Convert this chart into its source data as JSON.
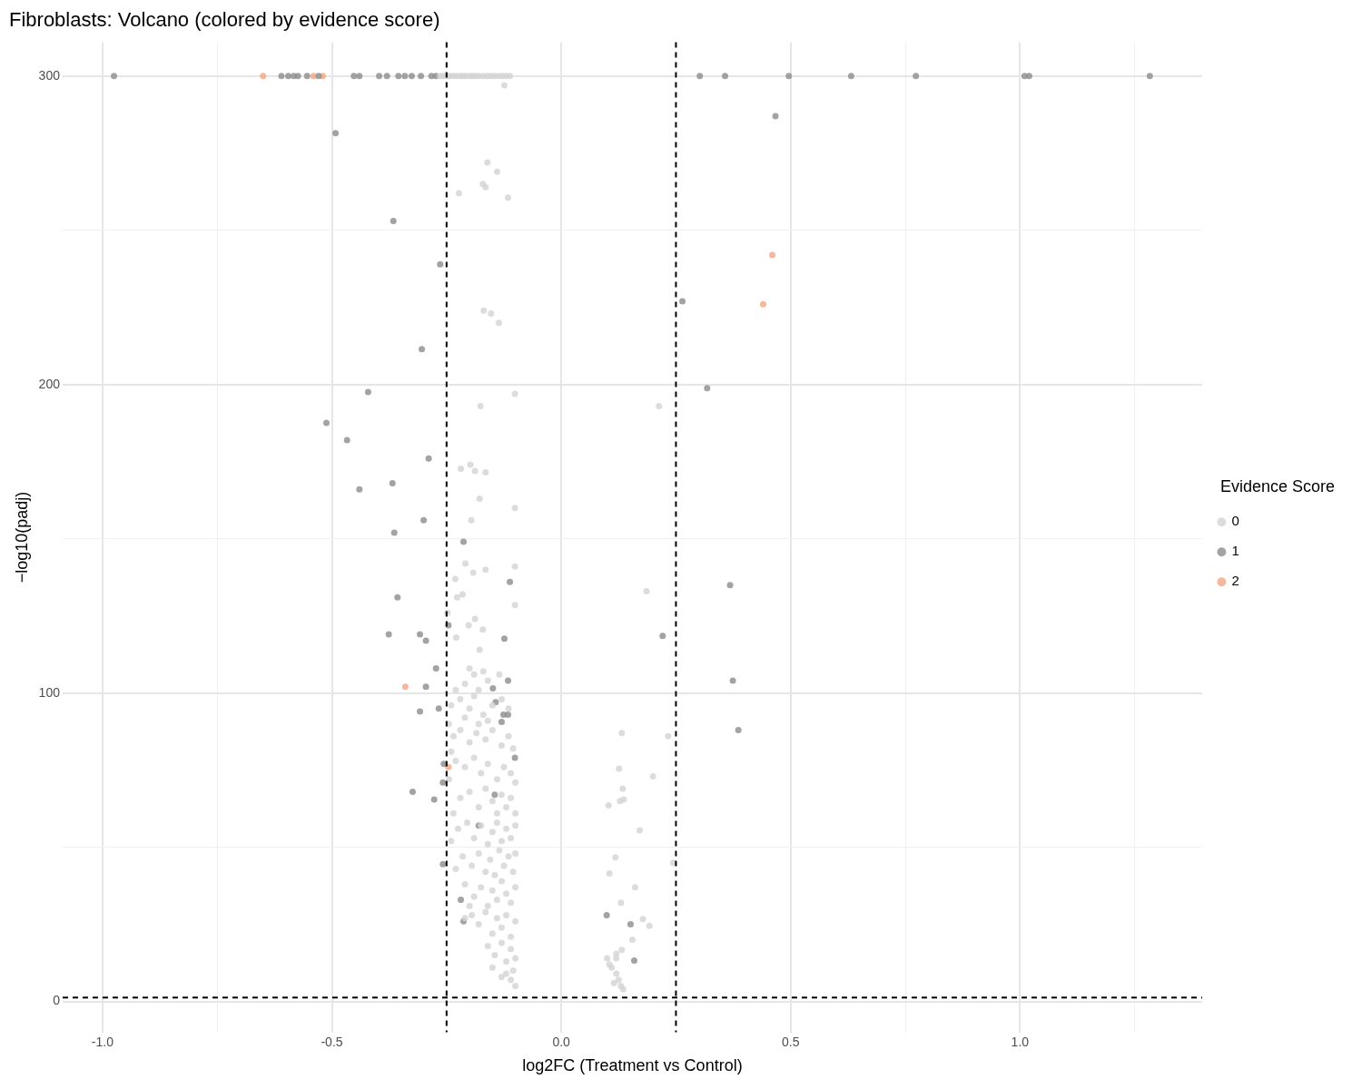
{
  "chart_data": {
    "type": "scatter",
    "title": "Fibroblasts: Volcano (colored by evidence score)",
    "xlabel": "log2FC (Treatment vs Control)",
    "ylabel": "−log10(padj)",
    "legend_title": "Evidence Score",
    "legend": "right",
    "grid": true,
    "marker": "circle",
    "xlim": [
      -1.087,
      1.397
    ],
    "ylim": [
      -10,
      311
    ],
    "xticks": [
      {
        "value": -1,
        "label": "-1.0"
      },
      {
        "value": -0.75,
        "label": null
      },
      {
        "value": -0.5,
        "label": "-0.5"
      },
      {
        "value": 0,
        "label": "0.0"
      },
      {
        "value": 0.5,
        "label": "0.5"
      },
      {
        "value": 0.75,
        "label": null
      },
      {
        "value": 1,
        "label": "1.0"
      },
      {
        "value": 1.25,
        "label": null
      }
    ],
    "yticks": [
      0,
      {
        "value": 50,
        "label": null
      },
      100,
      {
        "value": 150,
        "label": null
      },
      200,
      {
        "value": 250,
        "label": null
      },
      300
    ],
    "ref_lines": [
      {
        "axis": "x",
        "value": -0.25,
        "color": "#000000",
        "line_style": "dashed"
      },
      {
        "axis": "x",
        "value": 0.25,
        "color": "#000000",
        "line_style": "dashed"
      },
      {
        "axis": "y",
        "value": 1.3,
        "color": "#000000",
        "line_style": "dashed"
      }
    ],
    "series": [
      {
        "name": "0",
        "color": "#d3d3d3",
        "x": [
          -0.264,
          -0.258,
          -0.252,
          -0.246,
          -0.24,
          -0.233,
          -0.227,
          -0.219,
          -0.213,
          -0.207,
          -0.198,
          -0.192,
          -0.186,
          -0.178,
          -0.169,
          -0.161,
          -0.153,
          -0.145,
          -0.136,
          -0.128,
          -0.12,
          -0.112,
          -0.124,
          -0.161,
          -0.14,
          -0.171,
          -0.165,
          -0.223,
          -0.116,
          -0.169,
          -0.153,
          -0.136,
          -0.101,
          -0.176,
          0.213,
          -0.219,
          -0.198,
          -0.188,
          -0.165,
          -0.178,
          -0.101,
          -0.196,
          -0.209,
          -0.165,
          -0.101,
          -0.192,
          -0.231,
          0.186,
          -0.215,
          -0.227,
          -0.101,
          -0.248,
          -0.188,
          -0.202,
          -0.171,
          -0.229,
          -0.178,
          -0.2,
          -0.19,
          -0.17,
          -0.135,
          -0.21,
          -0.18,
          -0.16,
          -0.23,
          -0.24,
          -0.22,
          -0.2,
          -0.19,
          -0.17,
          -0.15,
          -0.13,
          -0.115,
          -0.245,
          -0.21,
          -0.18,
          -0.16,
          -0.235,
          -0.22,
          -0.2,
          -0.185,
          -0.165,
          -0.15,
          -0.13,
          -0.115,
          -0.105,
          -0.24,
          -0.23,
          -0.21,
          -0.19,
          -0.175,
          -0.16,
          -0.14,
          -0.125,
          -0.11,
          -0.1,
          -0.245,
          -0.22,
          -0.2,
          -0.18,
          -0.165,
          -0.15,
          -0.14,
          -0.13,
          -0.12,
          -0.11,
          -0.1,
          -0.235,
          -0.225,
          -0.205,
          -0.19,
          -0.175,
          -0.16,
          -0.15,
          -0.14,
          -0.13,
          -0.12,
          -0.11,
          -0.1,
          -0.24,
          -0.215,
          -0.195,
          -0.18,
          -0.165,
          -0.155,
          -0.145,
          -0.135,
          -0.125,
          -0.115,
          -0.105,
          -0.1,
          -0.23,
          -0.21,
          -0.19,
          -0.175,
          -0.16,
          -0.15,
          -0.14,
          -0.13,
          -0.12,
          -0.11,
          -0.1,
          -0.2,
          -0.195,
          -0.18,
          -0.165,
          -0.15,
          -0.14,
          -0.13,
          -0.12,
          -0.11,
          -0.1,
          -0.21,
          -0.16,
          -0.145,
          -0.13,
          -0.12,
          -0.11,
          -0.1,
          -0.15,
          -0.12,
          -0.11,
          -0.1,
          -0.105,
          -0.13,
          0.132,
          0.233,
          0.126,
          0.2,
          0.134,
          0.136,
          0.128,
          0.103,
          0.171,
          0.118,
          0.244,
          0.105,
          0.161,
          0.13,
          0.178,
          0.192,
          0.155,
          0.132,
          0.12,
          0.1,
          0.11,
          0.12,
          0.125,
          0.13,
          0.115,
          0.135,
          0.105,
          0.12
        ],
        "values": [
          300,
          300,
          300,
          300,
          300,
          300,
          300,
          300,
          300,
          300,
          300,
          300,
          300,
          300,
          300,
          300,
          300,
          300,
          300,
          300,
          300,
          300,
          297,
          272,
          269,
          265,
          264,
          262,
          260.6,
          224,
          223,
          220,
          197,
          193,
          193,
          172.7,
          174,
          172,
          171.5,
          163,
          160,
          156,
          142,
          140,
          141,
          139,
          137,
          133,
          132,
          131,
          128.5,
          126,
          124,
          122,
          120.6,
          118,
          114,
          108,
          106,
          107,
          106,
          103,
          101,
          104,
          101,
          96,
          98,
          95,
          99,
          93,
          96,
          98,
          95,
          90,
          92,
          90,
          91,
          86,
          88,
          84,
          87,
          85,
          88,
          83,
          86,
          82,
          81,
          78,
          76,
          79,
          74,
          77,
          72,
          76,
          74,
          71,
          72,
          66,
          68,
          63,
          69,
          65,
          61,
          67,
          63,
          66,
          61,
          61,
          56,
          58,
          53,
          57,
          51,
          55,
          58,
          52,
          56,
          53,
          57,
          52,
          47,
          44,
          48,
          42,
          46,
          41,
          49,
          44,
          47,
          42,
          48,
          43,
          38,
          34,
          37,
          31,
          36,
          33,
          39,
          35,
          32,
          37,
          31,
          28,
          25,
          29,
          22,
          27,
          24,
          28,
          21,
          26,
          27,
          18,
          15,
          19,
          13,
          17,
          14,
          11,
          9,
          7,
          5,
          10,
          8,
          87,
          86,
          75.5,
          73,
          69,
          65.5,
          65,
          63.6,
          55.5,
          46.7,
          45,
          41.5,
          37,
          32,
          26.7,
          24.5,
          20,
          16.7,
          15.5,
          14,
          11,
          9,
          7,
          5,
          6,
          4,
          12,
          14
        ]
      },
      {
        "name": "1",
        "color": "#8c8c8c",
        "x": [
          -0.975,
          -0.61,
          -0.595,
          -0.583,
          -0.574,
          -0.554,
          -0.529,
          -0.452,
          -0.44,
          -0.397,
          -0.38,
          -0.355,
          -0.341,
          -0.326,
          -0.306,
          -0.283,
          -0.273,
          0.302,
          0.357,
          0.496,
          0.632,
          0.773,
          1.01,
          1.02,
          1.283,
          -0.492,
          0.467,
          -0.366,
          -0.264,
          0.264,
          -0.304,
          -0.421,
          0.318,
          -0.512,
          -0.467,
          -0.289,
          -0.368,
          -0.44,
          -0.3,
          -0.364,
          -0.213,
          0.368,
          -0.112,
          -0.357,
          -0.376,
          -0.308,
          -0.295,
          0.221,
          -0.124,
          -0.246,
          -0.273,
          -0.116,
          0.374,
          -0.295,
          -0.149,
          -0.143,
          -0.267,
          -0.308,
          -0.126,
          -0.116,
          -0.13,
          0.386,
          -0.101,
          -0.256,
          -0.324,
          -0.258,
          -0.145,
          -0.277,
          -0.18,
          -0.258,
          -0.219,
          -0.213,
          0.099,
          0.151,
          0.159
        ],
        "values": [
          300,
          300,
          300,
          300,
          300,
          300,
          300,
          300,
          300,
          300,
          300,
          300,
          300,
          300,
          300,
          300,
          300,
          300,
          300,
          300,
          300,
          300,
          300,
          300,
          300,
          281.5,
          287,
          253,
          239,
          227,
          211.5,
          197.6,
          198.8,
          187.6,
          182,
          176,
          168,
          166,
          156,
          152,
          149,
          135,
          136,
          131,
          119,
          119,
          117,
          118.5,
          117.6,
          122,
          108,
          104,
          104,
          102,
          101.5,
          97,
          95,
          94,
          93,
          93,
          90.6,
          88,
          79,
          77,
          68,
          71,
          67,
          65.5,
          57,
          44.5,
          33,
          26,
          28,
          25,
          13.3
        ]
      },
      {
        "name": "2",
        "color": "#f4a582",
        "x": [
          -0.65,
          -0.54,
          -0.52,
          0.46,
          0.44,
          -0.34,
          -0.246
        ],
        "values": [
          300,
          300,
          300,
          242,
          226,
          102,
          76
        ]
      }
    ]
  }
}
